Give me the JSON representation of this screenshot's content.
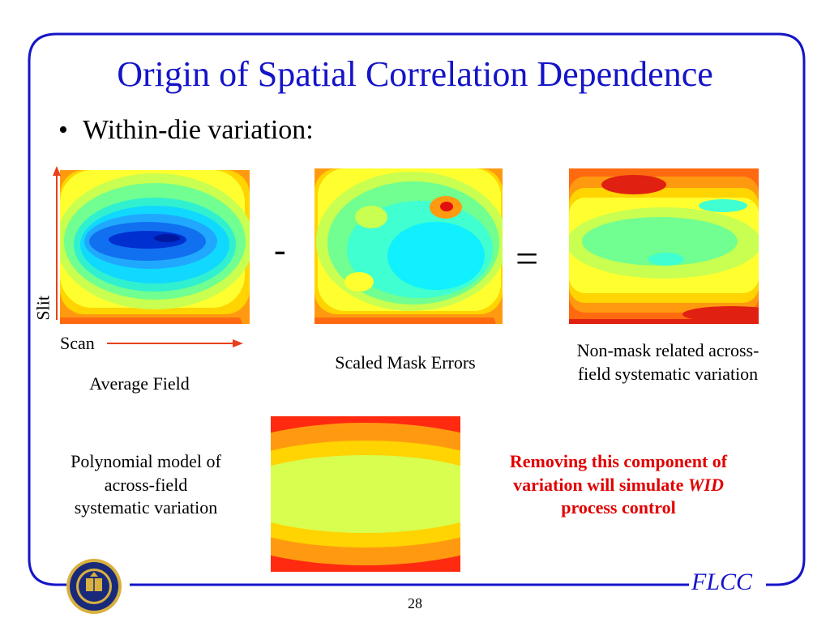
{
  "slide": {
    "title": "Origin of Spatial Correlation Dependence",
    "bullet": "Within-die variation:",
    "page_number": "28",
    "footer_logo_text": "FLCC"
  },
  "panels": {
    "average_field": {
      "label": "Average Field"
    },
    "scaled_mask": {
      "label": "Scaled Mask Errors"
    },
    "non_mask": {
      "label_line1": "Non-mask related across-",
      "label_line2": "field systematic variation"
    },
    "polynomial": {
      "label_line1": "Polynomial model of",
      "label_line2": "across-field",
      "label_line3": "systematic variation"
    }
  },
  "axes": {
    "slit": "Slit",
    "scan": "Scan"
  },
  "operators": {
    "minus": "-",
    "equals": "="
  },
  "note": {
    "line1": "Removing this component of",
    "line2_prefix": "variation will simulate ",
    "line2_emph": "WID",
    "line3": "process control"
  },
  "colors": {
    "title": "#1414c8",
    "frame": "#1414c8",
    "note": "#e10000",
    "axis_arrow": "#e8401a"
  }
}
